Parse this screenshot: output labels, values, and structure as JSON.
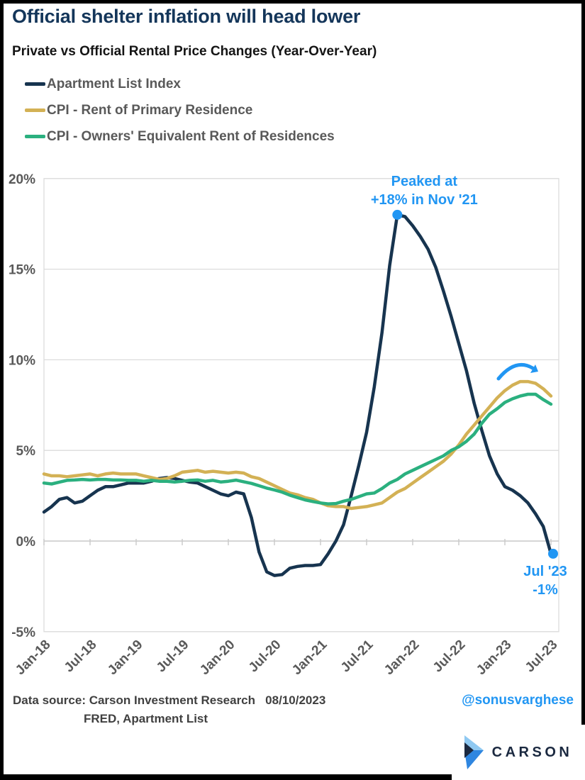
{
  "header": {
    "title": "Official shelter inflation will head lower",
    "subtitle": "Private vs Official Rental Price Changes (Year-Over-Year)"
  },
  "legend": {
    "items": [
      {
        "label": "Apartment List Index"
      },
      {
        "label": "CPI - Rent of Primary Residence"
      },
      {
        "label": "CPI - Owners' Equivalent Rent of Residences"
      }
    ]
  },
  "chart_data": {
    "type": "line",
    "title": "Private vs Official Rental Price Changes (Year-Over-Year)",
    "xlabel": "",
    "ylabel": "",
    "ylim": [
      -5,
      20
    ],
    "grid": "horizontal",
    "legend_position": "top-left",
    "y_ticks": [
      20,
      15,
      10,
      5,
      0,
      -5
    ],
    "y_tick_labels": [
      "20%",
      "15%",
      "10%",
      "5%",
      "0%",
      "-5%"
    ],
    "x_tick_labels": [
      "Jan-18",
      "Jul-18",
      "Jan-19",
      "Jul-19",
      "Jan-20",
      "Jul-20",
      "Jan-21",
      "Jul-21",
      "Jan-22",
      "Jul-22",
      "Jan-23",
      "Jul-23"
    ],
    "x": [
      "Jan-18",
      "Feb-18",
      "Mar-18",
      "Apr-18",
      "May-18",
      "Jun-18",
      "Jul-18",
      "Aug-18",
      "Sep-18",
      "Oct-18",
      "Nov-18",
      "Dec-18",
      "Jan-19",
      "Feb-19",
      "Mar-19",
      "Apr-19",
      "May-19",
      "Jun-19",
      "Jul-19",
      "Aug-19",
      "Sep-19",
      "Oct-19",
      "Nov-19",
      "Dec-19",
      "Jan-20",
      "Feb-20",
      "Mar-20",
      "Apr-20",
      "May-20",
      "Jun-20",
      "Jul-20",
      "Aug-20",
      "Sep-20",
      "Oct-20",
      "Nov-20",
      "Dec-20",
      "Jan-21",
      "Feb-21",
      "Mar-21",
      "Apr-21",
      "May-21",
      "Jun-21",
      "Jul-21",
      "Aug-21",
      "Sep-21",
      "Oct-21",
      "Nov-21",
      "Dec-21",
      "Jan-22",
      "Feb-22",
      "Mar-22",
      "Apr-22",
      "May-22",
      "Jun-22",
      "Jul-22",
      "Aug-22",
      "Sep-22",
      "Oct-22",
      "Nov-22",
      "Dec-22",
      "Jan-23",
      "Feb-23",
      "Mar-23",
      "Apr-23",
      "May-23",
      "Jun-23",
      "Jul-23"
    ],
    "series": [
      {
        "name": "Apartment List Index",
        "color": "#17344F",
        "values": [
          1.6,
          1.9,
          2.3,
          2.4,
          2.1,
          2.2,
          2.5,
          2.8,
          3.0,
          3.0,
          3.1,
          3.2,
          3.2,
          3.2,
          3.3,
          3.45,
          3.5,
          3.45,
          3.35,
          3.25,
          3.2,
          3.0,
          2.8,
          2.6,
          2.5,
          2.7,
          2.6,
          1.3,
          -0.6,
          -1.7,
          -1.9,
          -1.85,
          -1.5,
          -1.4,
          -1.35,
          -1.35,
          -1.3,
          -0.7,
          0.0,
          0.9,
          2.5,
          4.2,
          6.0,
          8.5,
          11.5,
          15.2,
          18.0,
          17.9,
          17.4,
          16.8,
          16.1,
          15.1,
          13.8,
          12.4,
          10.9,
          9.4,
          7.6,
          6.1,
          4.7,
          3.7,
          3.0,
          2.8,
          2.5,
          2.1,
          1.5,
          0.8,
          -0.7
        ]
      },
      {
        "name": "CPI - Rent of Primary Residence",
        "color": "#D3B155",
        "values": [
          3.7,
          3.6,
          3.6,
          3.55,
          3.6,
          3.65,
          3.7,
          3.6,
          3.7,
          3.75,
          3.7,
          3.7,
          3.7,
          3.6,
          3.5,
          3.4,
          3.45,
          3.6,
          3.8,
          3.85,
          3.9,
          3.8,
          3.85,
          3.8,
          3.75,
          3.8,
          3.75,
          3.55,
          3.45,
          3.25,
          3.05,
          2.85,
          2.65,
          2.55,
          2.4,
          2.3,
          2.1,
          1.95,
          1.9,
          1.9,
          1.8,
          1.85,
          1.9,
          2.0,
          2.1,
          2.4,
          2.7,
          2.9,
          3.2,
          3.5,
          3.8,
          4.1,
          4.4,
          4.8,
          5.3,
          5.9,
          6.4,
          6.9,
          7.4,
          7.9,
          8.3,
          8.6,
          8.8,
          8.8,
          8.7,
          8.4,
          8.0
        ]
      },
      {
        "name": "CPI - Owners' Equivalent Rent of Residences",
        "color": "#2BB07F",
        "values": [
          3.2,
          3.15,
          3.25,
          3.35,
          3.37,
          3.4,
          3.37,
          3.4,
          3.4,
          3.37,
          3.37,
          3.35,
          3.35,
          3.3,
          3.35,
          3.3,
          3.3,
          3.26,
          3.3,
          3.35,
          3.37,
          3.3,
          3.35,
          3.26,
          3.3,
          3.36,
          3.27,
          3.18,
          3.05,
          2.92,
          2.82,
          2.7,
          2.53,
          2.4,
          2.27,
          2.18,
          2.1,
          2.05,
          2.07,
          2.2,
          2.3,
          2.45,
          2.6,
          2.65,
          2.9,
          3.2,
          3.4,
          3.7,
          3.9,
          4.1,
          4.3,
          4.5,
          4.7,
          5.0,
          5.2,
          5.5,
          5.9,
          6.5,
          7.0,
          7.3,
          7.65,
          7.85,
          8.0,
          8.1,
          8.1,
          7.8,
          7.55
        ]
      }
    ],
    "annotations": {
      "peak": {
        "line1": "Peaked at",
        "line2": "+18% in Nov '21",
        "month": "Nov-21",
        "value": 18,
        "color": "#2196F3"
      },
      "latest": {
        "line1": "Jul '23",
        "line2": "-1%",
        "month": "Jul-23",
        "value": -0.7,
        "color": "#2196F3"
      },
      "arrow_note": "curved arrow over CPI rent peak"
    }
  },
  "footer": {
    "source_line1": "Data source: Carson Investment Research   08/10/2023",
    "source_line2": "FRED, Apartment List",
    "handle": "@sonusvarghese"
  },
  "logo": {
    "text": "CARSON"
  },
  "colors": {
    "title": "#14365A",
    "axis_label": "#595959",
    "gridline": "#DCDCDC",
    "zero_axis": "#C9C9C9",
    "annotation_blue": "#2196F3",
    "footer_text": "#404040",
    "frame": "#000000",
    "logo_navy": "#1B2940",
    "logo_light_blue": "#8FC9F2",
    "logo_mid_blue": "#2F86E0"
  }
}
